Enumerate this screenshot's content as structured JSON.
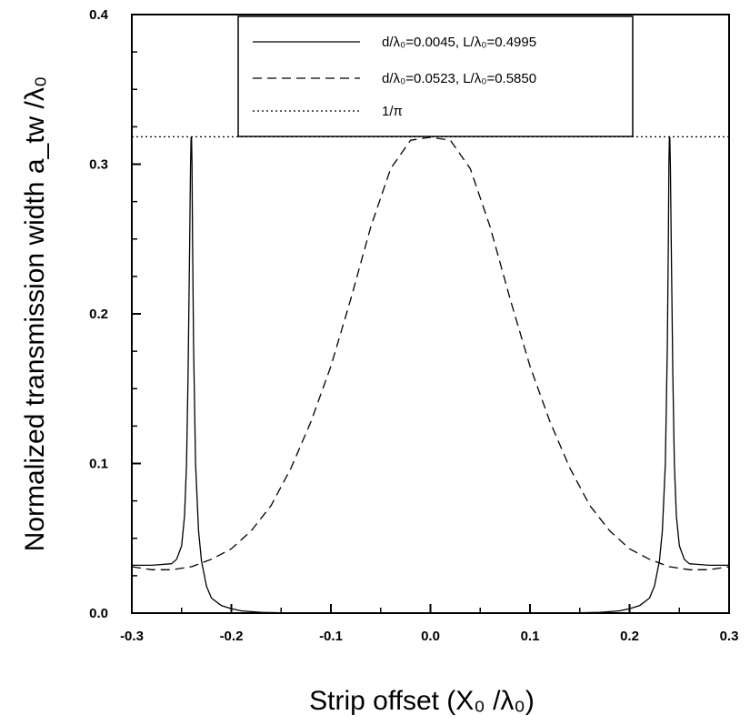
{
  "chart_data": {
    "type": "line",
    "xlabel": "Strip offset (X₀ /λ₀)",
    "ylabel": "Normalized transmission width a_tw /λ₀",
    "xlim": [
      -0.3,
      0.3
    ],
    "ylim": [
      0.0,
      0.4
    ],
    "xticks": [
      "-0.3",
      "-0.2",
      "-0.1",
      "0.0",
      "0.1",
      "0.2",
      "0.3"
    ],
    "yticks": [
      "0.0",
      "0.1",
      "0.2",
      "0.3",
      "0.4"
    ],
    "grid": false,
    "legend_position": "top-center",
    "series": [
      {
        "name": "d/λ₀=0.0045, L/λ₀=0.4995",
        "style": "solid",
        "color": "#000000",
        "x": [
          -0.3,
          -0.28,
          -0.26,
          -0.255,
          -0.25,
          -0.247,
          -0.245,
          -0.2435,
          -0.242,
          -0.241,
          -0.2405,
          -0.24,
          -0.2395,
          -0.239,
          -0.238,
          -0.236,
          -0.233,
          -0.23,
          -0.225,
          -0.22,
          -0.21,
          -0.2,
          -0.19,
          -0.18,
          -0.17,
          -0.15,
          -0.1,
          0.0,
          0.1,
          0.15,
          0.17,
          0.18,
          0.19,
          0.2,
          0.21,
          0.22,
          0.225,
          0.23,
          0.233,
          0.236,
          0.238,
          0.239,
          0.2395,
          0.24,
          0.2405,
          0.241,
          0.242,
          0.2435,
          0.245,
          0.247,
          0.25,
          0.255,
          0.26,
          0.28,
          0.3
        ],
        "y": [
          0.032,
          0.032,
          0.033,
          0.036,
          0.045,
          0.065,
          0.1,
          0.16,
          0.24,
          0.3,
          0.318,
          0.318,
          0.3,
          0.25,
          0.18,
          0.1,
          0.055,
          0.035,
          0.018,
          0.01,
          0.005,
          0.003,
          0.0015,
          0.001,
          0.0005,
          0.0002,
          0.0,
          0.0,
          0.0,
          0.0002,
          0.0005,
          0.001,
          0.0015,
          0.003,
          0.005,
          0.01,
          0.018,
          0.035,
          0.055,
          0.1,
          0.18,
          0.25,
          0.3,
          0.318,
          0.318,
          0.3,
          0.24,
          0.16,
          0.1,
          0.065,
          0.045,
          0.036,
          0.033,
          0.032,
          0.032
        ]
      },
      {
        "name": "d/λ₀=0.0523, L/λ₀=0.5850",
        "style": "dashed",
        "color": "#000000",
        "x": [
          -0.3,
          -0.28,
          -0.26,
          -0.24,
          -0.22,
          -0.2,
          -0.18,
          -0.16,
          -0.14,
          -0.12,
          -0.1,
          -0.08,
          -0.06,
          -0.04,
          -0.02,
          0.0,
          0.02,
          0.04,
          0.06,
          0.08,
          0.1,
          0.12,
          0.14,
          0.16,
          0.18,
          0.2,
          0.22,
          0.24,
          0.26,
          0.28,
          0.3
        ],
        "y": [
          0.031,
          0.029,
          0.029,
          0.031,
          0.036,
          0.043,
          0.055,
          0.072,
          0.097,
          0.128,
          0.165,
          0.21,
          0.258,
          0.297,
          0.316,
          0.318,
          0.316,
          0.297,
          0.258,
          0.21,
          0.165,
          0.128,
          0.097,
          0.072,
          0.055,
          0.043,
          0.036,
          0.031,
          0.029,
          0.029,
          0.031
        ]
      },
      {
        "name": "1/π",
        "style": "dotted",
        "color": "#000000",
        "x": [
          -0.3,
          0.3
        ],
        "y": [
          0.3183,
          0.3183
        ]
      }
    ]
  }
}
